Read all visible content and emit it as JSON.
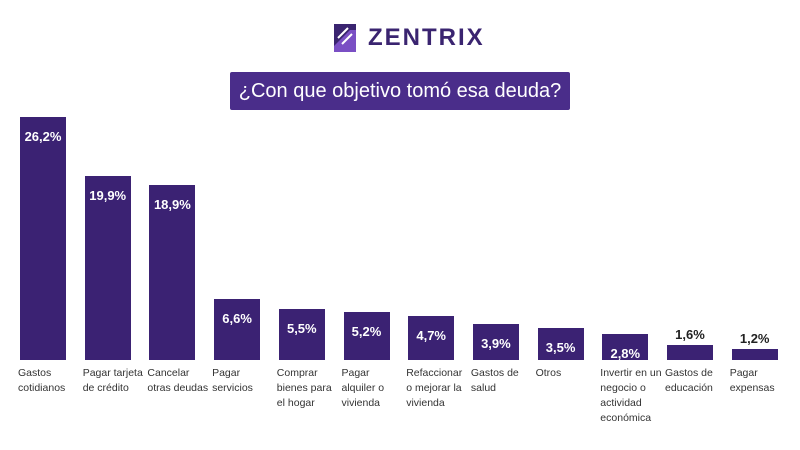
{
  "brand": "ZENTRIX",
  "chart_data": {
    "type": "bar",
    "title": "¿Con que objetivo tomó esa deuda?",
    "categories": [
      "Gastos cotidianos",
      "Pagar tarjeta de crédito",
      "Cancelar otras deudas",
      "Pagar servicios",
      "Comprar bienes para el hogar",
      "Pagar alquiler o vivienda",
      "Refaccionar o mejorar la vivienda",
      "Gastos de salud",
      "Otros",
      "Invertir en un negocio o actividad económica",
      "Gastos de educación",
      "Pagar expensas"
    ],
    "values": [
      26.2,
      19.9,
      18.9,
      6.6,
      5.5,
      5.2,
      4.7,
      3.9,
      3.5,
      2.8,
      1.6,
      1.2
    ],
    "value_labels": [
      "26,2%",
      "19,9%",
      "18,9%",
      "6,6%",
      "5,5%",
      "5,2%",
      "4,7%",
      "3,9%",
      "3,5%",
      "2,8%",
      "1,6%",
      "1,2%"
    ],
    "color": "#3b2273"
  }
}
